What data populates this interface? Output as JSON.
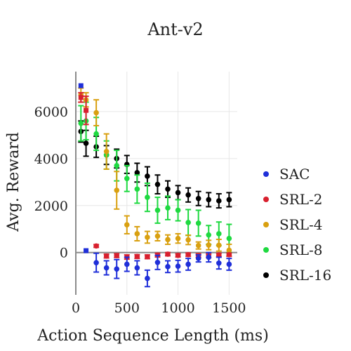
{
  "chart_data": {
    "type": "scatter",
    "title": "Ant-v2",
    "xlabel": "Action Sequence Length (ms)",
    "ylabel": "Avg. Reward",
    "xlim": [
      0,
      1580
    ],
    "ylim": [
      -1800,
      7700
    ],
    "xticks": [
      "0",
      "500",
      "1000",
      "1500"
    ],
    "xtick_values": [
      0,
      500,
      1000,
      1500
    ],
    "yticks": [
      "0",
      "2000",
      "4000",
      "6000"
    ],
    "ytick_values": [
      0,
      2000,
      4000,
      6000
    ],
    "grid": true,
    "legend_position": "right",
    "error_bars": true,
    "series": [
      {
        "name": "SAC",
        "color": "#1f2fd9",
        "x": [
          50,
          100
        ],
        "y": [
          7100,
          80
        ],
        "err": [
          0,
          0
        ],
        "points": []
      },
      {
        "name": "SRL-2",
        "color": "#d8202e",
        "x": [
          50,
          100,
          200,
          300,
          400,
          500,
          600,
          700,
          800,
          900,
          1000,
          1100,
          1200,
          1300,
          1400,
          1500
        ],
        "y": [
          6600,
          6050,
          280,
          -150,
          -130,
          -190,
          -170,
          -180,
          -110,
          -70,
          -120,
          -90,
          -130,
          -140,
          -100,
          -90
        ],
        "err": [
          200,
          600,
          60,
          80,
          80,
          90,
          80,
          80,
          80,
          70,
          70,
          70,
          80,
          80,
          70,
          70
        ]
      },
      {
        "name": "SRL-4",
        "color": "#d9a010",
        "x": [
          50,
          100,
          200,
          300,
          400,
          500,
          600,
          700,
          800,
          900,
          1000,
          1100,
          1200,
          1300,
          1400,
          1500
        ],
        "y": [
          6700,
          6500,
          5950,
          4300,
          2650,
          1180,
          800,
          650,
          700,
          550,
          600,
          540,
          300,
          320,
          310,
          100
        ],
        "err": [
          300,
          300,
          550,
          750,
          800,
          380,
          300,
          250,
          200,
          200,
          200,
          200,
          150,
          200,
          250,
          250
        ]
      },
      {
        "name": "SRL-8",
        "color": "#1ed940",
        "x": [
          50,
          100,
          200,
          300,
          400,
          500,
          600,
          700,
          800,
          900,
          1000,
          1100,
          1200,
          1300,
          1400,
          1500
        ],
        "y": [
          5500,
          5600,
          5050,
          4150,
          3700,
          3150,
          2700,
          2350,
          1800,
          1900,
          1800,
          1280,
          1250,
          750,
          800,
          600
        ],
        "err": [
          750,
          800,
          700,
          600,
          650,
          550,
          600,
          600,
          550,
          500,
          450,
          550,
          550,
          400,
          500,
          600
        ]
      },
      {
        "name": "SRL-16",
        "color": "#000000",
        "x": [
          50,
          100,
          200,
          300,
          400,
          500,
          600,
          700,
          800,
          900,
          1000,
          1100,
          1200,
          1300,
          1400,
          1500
        ],
        "y": [
          5150,
          4650,
          4500,
          4150,
          4000,
          3750,
          3400,
          3250,
          2900,
          2700,
          2550,
          2450,
          2300,
          2250,
          2200,
          2250
        ],
        "err": [
          450,
          550,
          450,
          400,
          400,
          380,
          400,
          400,
          400,
          350,
          300,
          300,
          300,
          300,
          300,
          300
        ]
      }
    ]
  },
  "sac_points": {
    "x": [
      200,
      300,
      400,
      500,
      600,
      700,
      800,
      900,
      1000,
      1100,
      1200,
      1300,
      1400,
      1500
    ],
    "y": [
      -430,
      -650,
      -700,
      -500,
      -650,
      -1100,
      -420,
      -600,
      -580,
      -500,
      -250,
      -200,
      -450,
      -500
    ],
    "err": [
      400,
      300,
      400,
      300,
      300,
      350,
      300,
      250,
      250,
      250,
      150,
      200,
      250,
      250
    ]
  }
}
